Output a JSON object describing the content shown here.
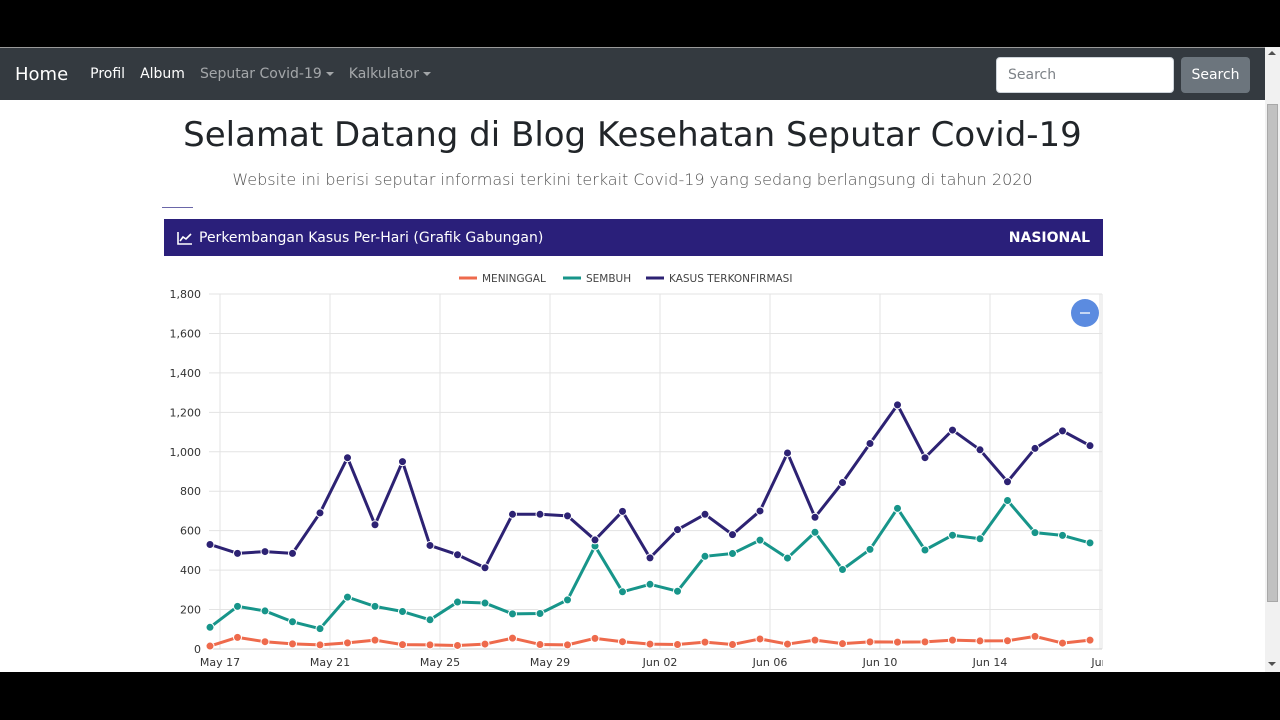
{
  "navbar": {
    "brand": "Home",
    "links": [
      {
        "label": "Profil",
        "dropdown": false
      },
      {
        "label": "Album",
        "dropdown": false
      },
      {
        "label": "Seputar Covid-19",
        "dropdown": true
      },
      {
        "label": "Kalkulator",
        "dropdown": true
      }
    ],
    "search_placeholder": "Search",
    "search_button": "Search"
  },
  "page": {
    "title": "Selamat Datang di Blog Kesehatan Seputar Covid-19",
    "subtitle": "Website ini berisi seputar informasi terkini terkait Covid-19 yang sedang berlangsung di tahun 2020"
  },
  "card": {
    "icon": "line-chart-icon",
    "title": "Perkembangan Kasus Per-Hari (Grafik Gabungan)",
    "badge": "NASIONAL",
    "header_color": "#2a1f7a"
  },
  "chart_data": {
    "type": "line",
    "title": "Perkembangan Kasus Per-Hari (Grafik Gabungan)",
    "xlabel": "",
    "ylabel": "",
    "ylim": [
      0,
      1800
    ],
    "yticks": [
      0,
      200,
      400,
      600,
      800,
      1000,
      1200,
      1400,
      1600,
      1800
    ],
    "xtick_labels": [
      "May 17",
      "May 21",
      "May 25",
      "May 29",
      "Jun 02",
      "Jun 06",
      "Jun 10",
      "Jun 14",
      "Jun"
    ],
    "grid": true,
    "legend_position": "top",
    "x": [
      "May 16",
      "May 17",
      "May 18",
      "May 19",
      "May 20",
      "May 21",
      "May 22",
      "May 23",
      "May 24",
      "May 25",
      "May 26",
      "May 27",
      "May 28",
      "May 29",
      "May 30",
      "May 31",
      "Jun 01",
      "Jun 02",
      "Jun 03",
      "Jun 04",
      "Jun 05",
      "Jun 06",
      "Jun 07",
      "Jun 08",
      "Jun 09",
      "Jun 10",
      "Jun 11",
      "Jun 12",
      "Jun 13",
      "Jun 14",
      "Jun 15",
      "Jun 16",
      "Jun 17"
    ],
    "series": [
      {
        "name": "MENINGGAL",
        "color": "#ee6a4c",
        "values": [
          15,
          59,
          37,
          26,
          21,
          31,
          45,
          22,
          21,
          18,
          25,
          55,
          23,
          21,
          54,
          37,
          25,
          23,
          35,
          23,
          51,
          25,
          45,
          27,
          36,
          35,
          36,
          45,
          41,
          42,
          64,
          30,
          45
        ]
      },
      {
        "name": "SEMBUH",
        "color": "#17958a",
        "values": [
          110,
          216,
          193,
          138,
          103,
          263,
          216,
          190,
          148,
          238,
          233,
          178,
          180,
          249,
          522,
          290,
          328,
          293,
          470,
          484,
          552,
          461,
          592,
          403,
          505,
          713,
          502,
          577,
          559,
          753,
          590,
          576,
          538
        ]
      },
      {
        "name": "KASUS TERKONFIRMASI",
        "color": "#2d2273",
        "values": [
          530,
          485,
          494,
          485,
          690,
          970,
          630,
          950,
          525,
          478,
          412,
          683,
          683,
          675,
          553,
          698,
          462,
          605,
          683,
          580,
          700,
          994,
          668,
          844,
          1042,
          1238,
          970,
          1110,
          1010,
          848,
          1017,
          1106,
          1031
        ]
      }
    ],
    "zoom_button": "−"
  }
}
